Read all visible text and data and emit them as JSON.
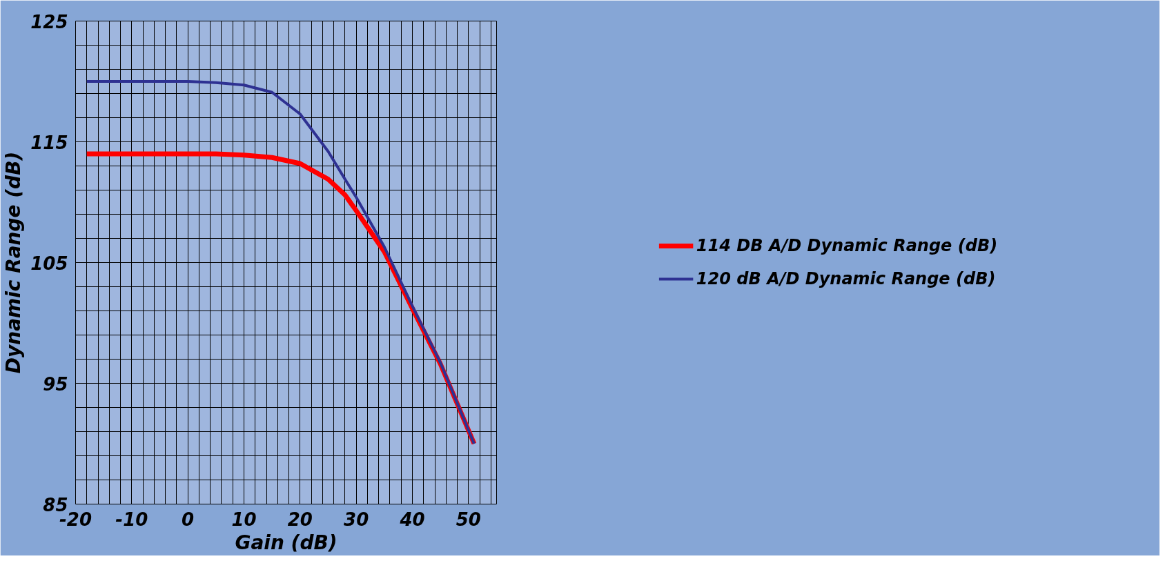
{
  "chart_data": {
    "type": "line",
    "xlabel": "Gain (dB)",
    "ylabel": "Dynamic Range (dB)",
    "x": [
      -18,
      0,
      5,
      10,
      15,
      20,
      25,
      28,
      30,
      35,
      40,
      45,
      51
    ],
    "series": [
      {
        "name": "114 DB A/D Dynamic Range (dB)",
        "color": "#ff0000",
        "values": [
          114,
          114,
          114,
          113.9,
          113.7,
          113.2,
          111.9,
          110.6,
          109.3,
          105.9,
          101.2,
          96.6,
          90
        ]
      },
      {
        "name": "120 dB A/D Dynamic Range (dB)",
        "color": "#2e3192",
        "values": [
          120,
          120,
          119.9,
          119.7,
          119.1,
          117.3,
          114.2,
          111.9,
          110.4,
          106.3,
          101.4,
          96.7,
          90
        ]
      }
    ],
    "xlim": [
      -20,
      55
    ],
    "ylim": [
      85,
      125
    ],
    "xticks": [
      -20,
      {
        "value": -18,
        "label": null
      },
      {
        "value": -16,
        "label": null
      },
      {
        "value": -14,
        "label": null
      },
      {
        "value": -12,
        "label": null
      },
      -10,
      {
        "value": -8,
        "label": null
      },
      {
        "value": -6,
        "label": null
      },
      {
        "value": -4,
        "label": null
      },
      {
        "value": -2,
        "label": null
      },
      0,
      {
        "value": 2,
        "label": null
      },
      {
        "value": 4,
        "label": null
      },
      {
        "value": 6,
        "label": null
      },
      {
        "value": 8,
        "label": null
      },
      10,
      {
        "value": 12,
        "label": null
      },
      {
        "value": 14,
        "label": null
      },
      {
        "value": 16,
        "label": null
      },
      {
        "value": 18,
        "label": null
      },
      20,
      {
        "value": 22,
        "label": null
      },
      {
        "value": 24,
        "label": null
      },
      {
        "value": 26,
        "label": null
      },
      {
        "value": 28,
        "label": null
      },
      30,
      {
        "value": 32,
        "label": null
      },
      {
        "value": 34,
        "label": null
      },
      {
        "value": 36,
        "label": null
      },
      {
        "value": 38,
        "label": null
      },
      40,
      {
        "value": 42,
        "label": null
      },
      {
        "value": 44,
        "label": null
      },
      {
        "value": 46,
        "label": null
      },
      {
        "value": 48,
        "label": null
      },
      50,
      {
        "value": 52,
        "label": null
      },
      {
        "value": 54,
        "label": null
      }
    ],
    "yticks": [
      85,
      {
        "value": 87,
        "label": null
      },
      {
        "value": 89,
        "label": null
      },
      {
        "value": 91,
        "label": null
      },
      {
        "value": 93,
        "label": null
      },
      95,
      {
        "value": 97,
        "label": null
      },
      {
        "value": 99,
        "label": null
      },
      {
        "value": 101,
        "label": null
      },
      {
        "value": 103,
        "label": null
      },
      105,
      {
        "value": 107,
        "label": null
      },
      {
        "value": 109,
        "label": null
      },
      {
        "value": 111,
        "label": null
      },
      {
        "value": 113,
        "label": null
      },
      115,
      {
        "value": 117,
        "label": null
      },
      {
        "value": 119,
        "label": null
      },
      {
        "value": 121,
        "label": null
      },
      {
        "value": 123,
        "label": null
      },
      125
    ],
    "grid": true,
    "legend": "right",
    "marker": "none",
    "line_style": "solid"
  }
}
